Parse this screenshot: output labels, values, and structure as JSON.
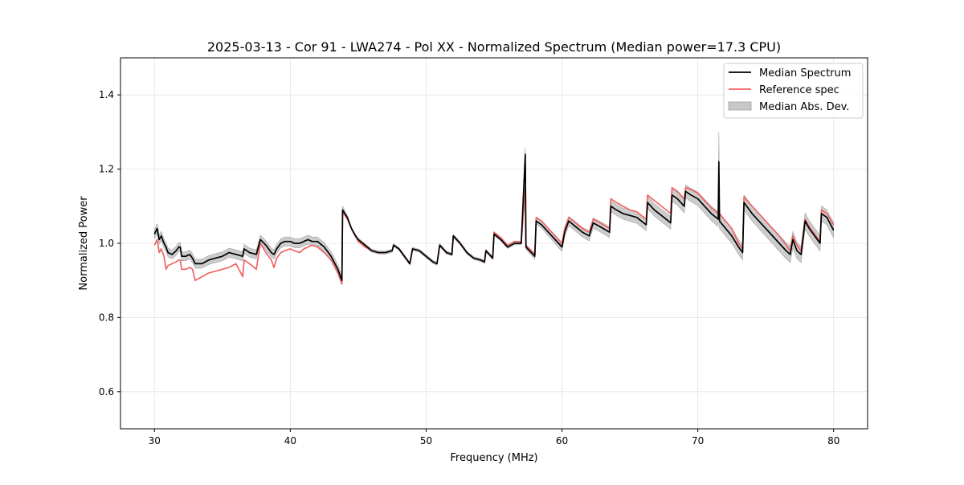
{
  "chart_data": {
    "type": "line",
    "title": "2025-03-13 - Cor 91 - LWA274 - Pol XX - Normalized Spectrum (Median power=17.3 CPU)",
    "xlabel": "Frequency (MHz)",
    "ylabel": "Normalized Power",
    "xlim": [
      27.5,
      82.5
    ],
    "ylim": [
      0.5,
      1.5
    ],
    "xticks": [
      30,
      40,
      50,
      60,
      70,
      80
    ],
    "xtick_labels": [
      "30",
      "40",
      "50",
      "60",
      "70",
      "80"
    ],
    "yticks": [
      0.6,
      0.8,
      1.0,
      1.2,
      1.4
    ],
    "ytick_labels": [
      "0.6",
      "0.8",
      "1.0",
      "1.2",
      "1.4"
    ],
    "grid": true,
    "legend_position": "top-right",
    "legend": [
      "Median Spectrum",
      "Reference spec",
      "Median Abs. Dev."
    ],
    "colors": {
      "median": "#000000",
      "reference": "#f06464",
      "mad_fill": "#c8c8c8",
      "mad_edge": "#a0a0a0",
      "grid": "#e4e4e4",
      "axes": "#000000"
    },
    "series": [
      {
        "name": "Median Spectrum",
        "points": [
          [
            30,
            1.025
          ],
          [
            30.2,
            1.04
          ],
          [
            30.35,
            1.01
          ],
          [
            30.5,
            1.02
          ],
          [
            30.7,
            1.0
          ],
          [
            30.85,
            0.99
          ],
          [
            31.0,
            0.975
          ],
          [
            31.3,
            0.97
          ],
          [
            31.6,
            0.98
          ],
          [
            31.8,
            0.99
          ],
          [
            31.9,
            0.99
          ],
          [
            32.0,
            0.965
          ],
          [
            32.3,
            0.965
          ],
          [
            32.6,
            0.97
          ],
          [
            32.8,
            0.96
          ],
          [
            33.0,
            0.945
          ],
          [
            33.5,
            0.945
          ],
          [
            34.0,
            0.955
          ],
          [
            34.5,
            0.96
          ],
          [
            35.0,
            0.965
          ],
          [
            35.5,
            0.975
          ],
          [
            36.0,
            0.97
          ],
          [
            36.5,
            0.965
          ],
          [
            36.6,
            0.985
          ],
          [
            37.0,
            0.975
          ],
          [
            37.5,
            0.97
          ],
          [
            37.8,
            1.01
          ],
          [
            38.2,
            0.995
          ],
          [
            38.6,
            0.975
          ],
          [
            38.8,
            0.97
          ],
          [
            39.0,
            0.985
          ],
          [
            39.3,
            1.0
          ],
          [
            39.6,
            1.005
          ],
          [
            40.0,
            1.005
          ],
          [
            40.3,
            1.0
          ],
          [
            40.7,
            1.0
          ],
          [
            41.0,
            1.005
          ],
          [
            41.3,
            1.01
          ],
          [
            41.6,
            1.005
          ],
          [
            42.0,
            1.005
          ],
          [
            42.5,
            0.99
          ],
          [
            43.0,
            0.965
          ],
          [
            43.5,
            0.93
          ],
          [
            43.8,
            0.9
          ],
          [
            43.85,
            1.09
          ],
          [
            44.2,
            1.07
          ],
          [
            44.5,
            1.04
          ],
          [
            44.8,
            1.02
          ],
          [
            45.0,
            1.01
          ],
          [
            45.5,
            0.995
          ],
          [
            46.0,
            0.98
          ],
          [
            46.5,
            0.975
          ],
          [
            47.0,
            0.975
          ],
          [
            47.5,
            0.98
          ],
          [
            47.6,
            0.995
          ],
          [
            48.0,
            0.985
          ],
          [
            48.5,
            0.96
          ],
          [
            48.8,
            0.945
          ],
          [
            49.0,
            0.985
          ],
          [
            49.5,
            0.98
          ],
          [
            50.0,
            0.965
          ],
          [
            50.5,
            0.95
          ],
          [
            50.8,
            0.945
          ],
          [
            51.0,
            0.995
          ],
          [
            51.5,
            0.975
          ],
          [
            51.9,
            0.97
          ],
          [
            52.0,
            1.02
          ],
          [
            52.5,
            1.0
          ],
          [
            53.0,
            0.975
          ],
          [
            53.5,
            0.96
          ],
          [
            54.0,
            0.955
          ],
          [
            54.3,
            0.95
          ],
          [
            54.4,
            0.98
          ],
          [
            54.9,
            0.96
          ],
          [
            55.0,
            1.025
          ],
          [
            55.5,
            1.01
          ],
          [
            56.0,
            0.99
          ],
          [
            56.5,
            1.0
          ],
          [
            56.9,
            1.0
          ],
          [
            57.0,
            1.0
          ],
          [
            57.3,
            1.24
          ],
          [
            57.35,
            0.99
          ],
          [
            58.0,
            0.965
          ],
          [
            58.1,
            1.06
          ],
          [
            58.5,
            1.05
          ],
          [
            59.0,
            1.03
          ],
          [
            59.5,
            1.01
          ],
          [
            60.0,
            0.99
          ],
          [
            60.2,
            1.03
          ],
          [
            60.5,
            1.06
          ],
          [
            61.0,
            1.045
          ],
          [
            61.5,
            1.03
          ],
          [
            62.0,
            1.02
          ],
          [
            62.3,
            1.055
          ],
          [
            62.8,
            1.045
          ],
          [
            63.5,
            1.03
          ],
          [
            63.6,
            1.1
          ],
          [
            64.0,
            1.09
          ],
          [
            64.5,
            1.08
          ],
          [
            65.0,
            1.075
          ],
          [
            65.5,
            1.07
          ],
          [
            66.2,
            1.05
          ],
          [
            66.3,
            1.11
          ],
          [
            66.8,
            1.09
          ],
          [
            67.5,
            1.07
          ],
          [
            68.0,
            1.055
          ],
          [
            68.1,
            1.13
          ],
          [
            68.5,
            1.12
          ],
          [
            69.0,
            1.1
          ],
          [
            69.1,
            1.14
          ],
          [
            69.5,
            1.13
          ],
          [
            70.0,
            1.12
          ],
          [
            70.5,
            1.1
          ],
          [
            71.0,
            1.08
          ],
          [
            71.5,
            1.065
          ],
          [
            71.55,
            1.22
          ],
          [
            71.6,
            1.06
          ],
          [
            72.5,
            1.02
          ],
          [
            73.0,
            0.99
          ],
          [
            73.3,
            0.975
          ],
          [
            73.4,
            1.11
          ],
          [
            74.0,
            1.08
          ],
          [
            74.5,
            1.06
          ],
          [
            75.0,
            1.04
          ],
          [
            75.5,
            1.02
          ],
          [
            76.0,
            1.0
          ],
          [
            76.5,
            0.98
          ],
          [
            76.8,
            0.97
          ],
          [
            77.0,
            1.01
          ],
          [
            77.3,
            0.98
          ],
          [
            77.6,
            0.97
          ],
          [
            77.9,
            1.06
          ],
          [
            78.2,
            1.04
          ],
          [
            78.6,
            1.02
          ],
          [
            79.0,
            1.0
          ],
          [
            79.1,
            1.08
          ],
          [
            79.5,
            1.07
          ],
          [
            80.0,
            1.035
          ]
        ]
      },
      {
        "name": "Reference spec",
        "points": [
          [
            30,
            0.995
          ],
          [
            30.2,
            1.01
          ],
          [
            30.35,
            0.975
          ],
          [
            30.5,
            0.985
          ],
          [
            30.7,
            0.965
          ],
          [
            30.85,
            0.93
          ],
          [
            31.0,
            0.94
          ],
          [
            31.3,
            0.945
          ],
          [
            31.6,
            0.95
          ],
          [
            31.8,
            0.955
          ],
          [
            31.9,
            0.955
          ],
          [
            32.0,
            0.93
          ],
          [
            32.3,
            0.93
          ],
          [
            32.6,
            0.935
          ],
          [
            32.8,
            0.93
          ],
          [
            33.0,
            0.9
          ],
          [
            33.5,
            0.91
          ],
          [
            34.0,
            0.92
          ],
          [
            34.5,
            0.925
          ],
          [
            35.0,
            0.93
          ],
          [
            35.5,
            0.935
          ],
          [
            36.0,
            0.945
          ],
          [
            36.5,
            0.91
          ],
          [
            36.6,
            0.955
          ],
          [
            37.0,
            0.945
          ],
          [
            37.5,
            0.93
          ],
          [
            37.8,
            1.0
          ],
          [
            38.2,
            0.975
          ],
          [
            38.6,
            0.955
          ],
          [
            38.8,
            0.935
          ],
          [
            39.0,
            0.96
          ],
          [
            39.3,
            0.975
          ],
          [
            39.6,
            0.98
          ],
          [
            40.0,
            0.985
          ],
          [
            40.3,
            0.98
          ],
          [
            40.7,
            0.975
          ],
          [
            41.0,
            0.985
          ],
          [
            41.3,
            0.99
          ],
          [
            41.6,
            0.995
          ],
          [
            42.0,
            0.99
          ],
          [
            42.5,
            0.975
          ],
          [
            43.0,
            0.955
          ],
          [
            43.5,
            0.92
          ],
          [
            43.8,
            0.89
          ],
          [
            43.85,
            1.085
          ],
          [
            44.2,
            1.065
          ],
          [
            44.5,
            1.04
          ],
          [
            44.8,
            1.02
          ],
          [
            45.0,
            1.005
          ],
          [
            45.5,
            0.99
          ],
          [
            46.0,
            0.98
          ],
          [
            46.5,
            0.975
          ],
          [
            47.0,
            0.975
          ],
          [
            47.5,
            0.98
          ],
          [
            47.6,
            0.995
          ],
          [
            48.0,
            0.985
          ],
          [
            48.5,
            0.96
          ],
          [
            48.8,
            0.945
          ],
          [
            49.0,
            0.985
          ],
          [
            49.5,
            0.98
          ],
          [
            50.0,
            0.965
          ],
          [
            50.5,
            0.95
          ],
          [
            50.8,
            0.945
          ],
          [
            51.0,
            0.995
          ],
          [
            51.5,
            0.975
          ],
          [
            51.9,
            0.97
          ],
          [
            52.0,
            1.02
          ],
          [
            52.5,
            1.0
          ],
          [
            53.0,
            0.975
          ],
          [
            53.5,
            0.96
          ],
          [
            54.0,
            0.955
          ],
          [
            54.3,
            0.95
          ],
          [
            54.4,
            0.98
          ],
          [
            54.9,
            0.96
          ],
          [
            55.0,
            1.03
          ],
          [
            55.5,
            1.015
          ],
          [
            56.0,
            0.995
          ],
          [
            56.5,
            1.005
          ],
          [
            56.9,
            1.005
          ],
          [
            57.0,
            1.0
          ],
          [
            57.3,
            1.15
          ],
          [
            57.35,
            0.995
          ],
          [
            58.0,
            0.97
          ],
          [
            58.1,
            1.07
          ],
          [
            58.5,
            1.06
          ],
          [
            59.0,
            1.04
          ],
          [
            59.5,
            1.02
          ],
          [
            60.0,
            1.0
          ],
          [
            60.2,
            1.04
          ],
          [
            60.5,
            1.07
          ],
          [
            61.0,
            1.055
          ],
          [
            61.5,
            1.04
          ],
          [
            62.0,
            1.03
          ],
          [
            62.3,
            1.065
          ],
          [
            62.8,
            1.055
          ],
          [
            63.5,
            1.04
          ],
          [
            63.6,
            1.12
          ],
          [
            64.0,
            1.11
          ],
          [
            64.5,
            1.1
          ],
          [
            65.0,
            1.09
          ],
          [
            65.5,
            1.085
          ],
          [
            66.2,
            1.065
          ],
          [
            66.3,
            1.13
          ],
          [
            66.8,
            1.115
          ],
          [
            67.5,
            1.095
          ],
          [
            68.0,
            1.08
          ],
          [
            68.1,
            1.15
          ],
          [
            68.5,
            1.14
          ],
          [
            69.0,
            1.12
          ],
          [
            69.1,
            1.15
          ],
          [
            69.5,
            1.145
          ],
          [
            70.0,
            1.135
          ],
          [
            70.5,
            1.115
          ],
          [
            71.0,
            1.095
          ],
          [
            71.5,
            1.08
          ],
          [
            71.55,
            1.1
          ],
          [
            71.6,
            1.08
          ],
          [
            72.5,
            1.04
          ],
          [
            73.0,
            1.0
          ],
          [
            73.3,
            0.985
          ],
          [
            73.4,
            1.125
          ],
          [
            74.0,
            1.1
          ],
          [
            74.5,
            1.08
          ],
          [
            75.0,
            1.06
          ],
          [
            75.5,
            1.04
          ],
          [
            76.0,
            1.02
          ],
          [
            76.5,
            0.995
          ],
          [
            76.8,
            0.98
          ],
          [
            77.0,
            1.02
          ],
          [
            77.3,
            0.995
          ],
          [
            77.6,
            0.98
          ],
          [
            77.9,
            1.065
          ],
          [
            78.2,
            1.045
          ],
          [
            78.6,
            1.025
          ],
          [
            79.0,
            1.005
          ],
          [
            79.1,
            1.09
          ],
          [
            79.5,
            1.08
          ],
          [
            80.0,
            1.05
          ]
        ]
      }
    ],
    "mad_band": {
      "name": "Median Abs. Dev.",
      "half_width": [
        [
          30,
          0.012
        ],
        [
          43.8,
          0.012
        ],
        [
          44,
          0.004
        ],
        [
          55,
          0.004
        ],
        [
          57.25,
          0.004
        ],
        [
          57.3,
          0.018
        ],
        [
          57.35,
          0.006
        ],
        [
          58,
          0.008
        ],
        [
          60,
          0.012
        ],
        [
          63,
          0.014
        ],
        [
          66,
          0.016
        ],
        [
          70,
          0.018
        ],
        [
          71.5,
          0.02
        ],
        [
          71.55,
          0.08
        ],
        [
          71.6,
          0.02
        ],
        [
          74,
          0.02
        ],
        [
          77,
          0.022
        ],
        [
          80,
          0.02
        ]
      ]
    }
  }
}
